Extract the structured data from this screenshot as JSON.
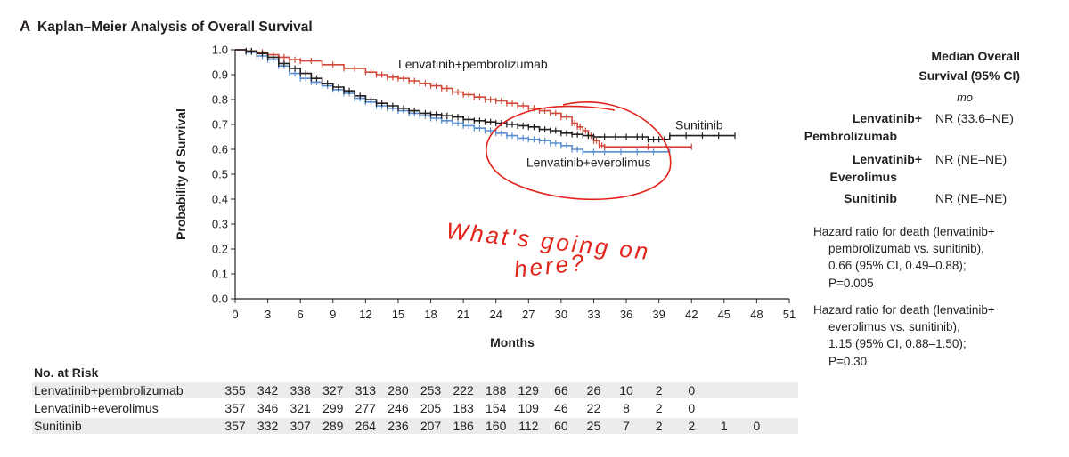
{
  "panel": {
    "letter": "A",
    "title": "Kaplan–Meier Analysis of Overall Survival"
  },
  "colors": {
    "pembro": "#d0493a",
    "everolimus": "#5b8fd2",
    "sunitinib": "#231f20",
    "annotation": "#e2231a",
    "risk_band": "#ececec"
  },
  "chart_data": {
    "type": "line",
    "subtype": "kaplan-meier",
    "xlabel": "Months",
    "ylabel": "Probability of Survival",
    "xlim": [
      0,
      51
    ],
    "ylim": [
      0,
      1.0
    ],
    "x_ticks": [
      0,
      3,
      6,
      9,
      12,
      15,
      18,
      21,
      24,
      27,
      30,
      33,
      36,
      39,
      42,
      45,
      48,
      51
    ],
    "y_ticks": [
      "0.0",
      "0.1",
      "0.2",
      "0.3",
      "0.4",
      "0.5",
      "0.6",
      "0.7",
      "0.8",
      "0.9",
      "1.0"
    ],
    "grid": false,
    "series": [
      {
        "name": "Lenvatinib+pembrolizumab",
        "key": "pembro",
        "points": [
          [
            0,
            1.0
          ],
          [
            1,
            0.995
          ],
          [
            2,
            0.99
          ],
          [
            3,
            0.98
          ],
          [
            4,
            0.97
          ],
          [
            5,
            0.96
          ],
          [
            6,
            0.955
          ],
          [
            8,
            0.94
          ],
          [
            10,
            0.925
          ],
          [
            12,
            0.91
          ],
          [
            13,
            0.9
          ],
          [
            14,
            0.89
          ],
          [
            15,
            0.885
          ],
          [
            16,
            0.875
          ],
          [
            17,
            0.865
          ],
          [
            18,
            0.855
          ],
          [
            19,
            0.845
          ],
          [
            20,
            0.83
          ],
          [
            21,
            0.82
          ],
          [
            22,
            0.81
          ],
          [
            23,
            0.8
          ],
          [
            24,
            0.795
          ],
          [
            25,
            0.785
          ],
          [
            26,
            0.775
          ],
          [
            27,
            0.765
          ],
          [
            28,
            0.755
          ],
          [
            29,
            0.745
          ],
          [
            30,
            0.73
          ],
          [
            31,
            0.705
          ],
          [
            31.5,
            0.69
          ],
          [
            32,
            0.675
          ],
          [
            32.5,
            0.655
          ],
          [
            33,
            0.635
          ],
          [
            33.5,
            0.615
          ],
          [
            34,
            0.61
          ],
          [
            42,
            0.61
          ]
        ]
      },
      {
        "name": "Lenvatinib+everolimus",
        "key": "everolimus",
        "points": [
          [
            0,
            1.0
          ],
          [
            1,
            0.99
          ],
          [
            2,
            0.975
          ],
          [
            3,
            0.96
          ],
          [
            4,
            0.935
          ],
          [
            5,
            0.905
          ],
          [
            6,
            0.885
          ],
          [
            7,
            0.87
          ],
          [
            8,
            0.855
          ],
          [
            9,
            0.84
          ],
          [
            10,
            0.825
          ],
          [
            11,
            0.805
          ],
          [
            12,
            0.79
          ],
          [
            13,
            0.775
          ],
          [
            14,
            0.765
          ],
          [
            15,
            0.755
          ],
          [
            16,
            0.745
          ],
          [
            17,
            0.735
          ],
          [
            18,
            0.725
          ],
          [
            19,
            0.715
          ],
          [
            20,
            0.705
          ],
          [
            21,
            0.695
          ],
          [
            22,
            0.685
          ],
          [
            23,
            0.675
          ],
          [
            24,
            0.665
          ],
          [
            25,
            0.655
          ],
          [
            26,
            0.645
          ],
          [
            27,
            0.64
          ],
          [
            28,
            0.635
          ],
          [
            29,
            0.625
          ],
          [
            30,
            0.615
          ],
          [
            31,
            0.6
          ],
          [
            32,
            0.59
          ],
          [
            34,
            0.59
          ],
          [
            37,
            0.59
          ],
          [
            40,
            0.59
          ]
        ]
      },
      {
        "name": "Sunitinib",
        "key": "sunitinib",
        "points": [
          [
            0,
            1.0
          ],
          [
            1,
            0.995
          ],
          [
            2,
            0.985
          ],
          [
            3,
            0.97
          ],
          [
            4,
            0.945
          ],
          [
            5,
            0.925
          ],
          [
            6,
            0.905
          ],
          [
            7,
            0.885
          ],
          [
            8,
            0.865
          ],
          [
            9,
            0.85
          ],
          [
            10,
            0.835
          ],
          [
            11,
            0.815
          ],
          [
            12,
            0.8
          ],
          [
            13,
            0.785
          ],
          [
            14,
            0.775
          ],
          [
            15,
            0.765
          ],
          [
            16,
            0.755
          ],
          [
            17,
            0.745
          ],
          [
            18,
            0.74
          ],
          [
            19,
            0.735
          ],
          [
            20,
            0.73
          ],
          [
            21,
            0.72
          ],
          [
            22,
            0.715
          ],
          [
            23,
            0.71
          ],
          [
            24,
            0.705
          ],
          [
            25,
            0.7
          ],
          [
            26,
            0.695
          ],
          [
            27,
            0.69
          ],
          [
            28,
            0.68
          ],
          [
            29,
            0.675
          ],
          [
            30,
            0.665
          ],
          [
            31,
            0.66
          ],
          [
            32,
            0.655
          ],
          [
            33,
            0.65
          ],
          [
            35,
            0.65
          ],
          [
            37,
            0.65
          ],
          [
            38,
            0.64
          ],
          [
            39,
            0.64
          ],
          [
            40,
            0.655
          ],
          [
            43,
            0.655
          ],
          [
            46,
            0.655
          ]
        ]
      }
    ],
    "curve_labels": [
      {
        "key": "pembro",
        "text": "Lenvatinib+pembrolizumab",
        "x": 15,
        "y": 0.925
      },
      {
        "key": "everolimus",
        "text": "Lenvatinib+everolimus",
        "x": 26.8,
        "y": 0.53
      },
      {
        "key": "sunitinib",
        "text": "Sunitinib",
        "x": 40.5,
        "y": 0.68
      }
    ]
  },
  "median_table": {
    "header_line1": "Median Overall",
    "header_line2": "Survival (95% CI)",
    "unit": "mo",
    "rows": [
      {
        "label_line1": "Lenvatinib+",
        "label_line2": "Pembrolizumab",
        "value": "NR (33.6–NE)"
      },
      {
        "label_line1": "Lenvatinib+",
        "label_line2": "Everolimus",
        "value": "NR (NE–NE)"
      },
      {
        "label_line1": "",
        "label_line2": "Sunitinib",
        "value": "NR (NE–NE)"
      }
    ]
  },
  "hazard_notes": [
    {
      "lines": [
        "Hazard ratio for death (lenvatinib+",
        "pembrolizumab vs. sunitinib),",
        "0.66 (95% CI, 0.49–0.88);",
        "P=0.005"
      ]
    },
    {
      "lines": [
        "Hazard ratio for death (lenvatinib+",
        "everolimus vs. sunitinib),",
        "1.15 (95% CI, 0.88–1.50);",
        "P=0.30"
      ]
    }
  ],
  "risk_table": {
    "title": "No. at Risk",
    "rows": [
      {
        "label": "Lenvatinib+pembrolizumab",
        "values": [
          "355",
          "342",
          "338",
          "327",
          "313",
          "280",
          "253",
          "222",
          "188",
          "129",
          "66",
          "26",
          "10",
          "2",
          "0"
        ]
      },
      {
        "label": "Lenvatinib+everolimus",
        "values": [
          "357",
          "346",
          "321",
          "299",
          "277",
          "246",
          "205",
          "183",
          "154",
          "109",
          "46",
          "22",
          "8",
          "2",
          "0"
        ]
      },
      {
        "label": "Sunitinib",
        "values": [
          "357",
          "332",
          "307",
          "289",
          "264",
          "236",
          "207",
          "186",
          "160",
          "112",
          "60",
          "25",
          "7",
          "2",
          "2",
          "1",
          "0"
        ]
      }
    ]
  },
  "handwritten_annotation": {
    "line1": "What's going on",
    "line2": "here?"
  }
}
